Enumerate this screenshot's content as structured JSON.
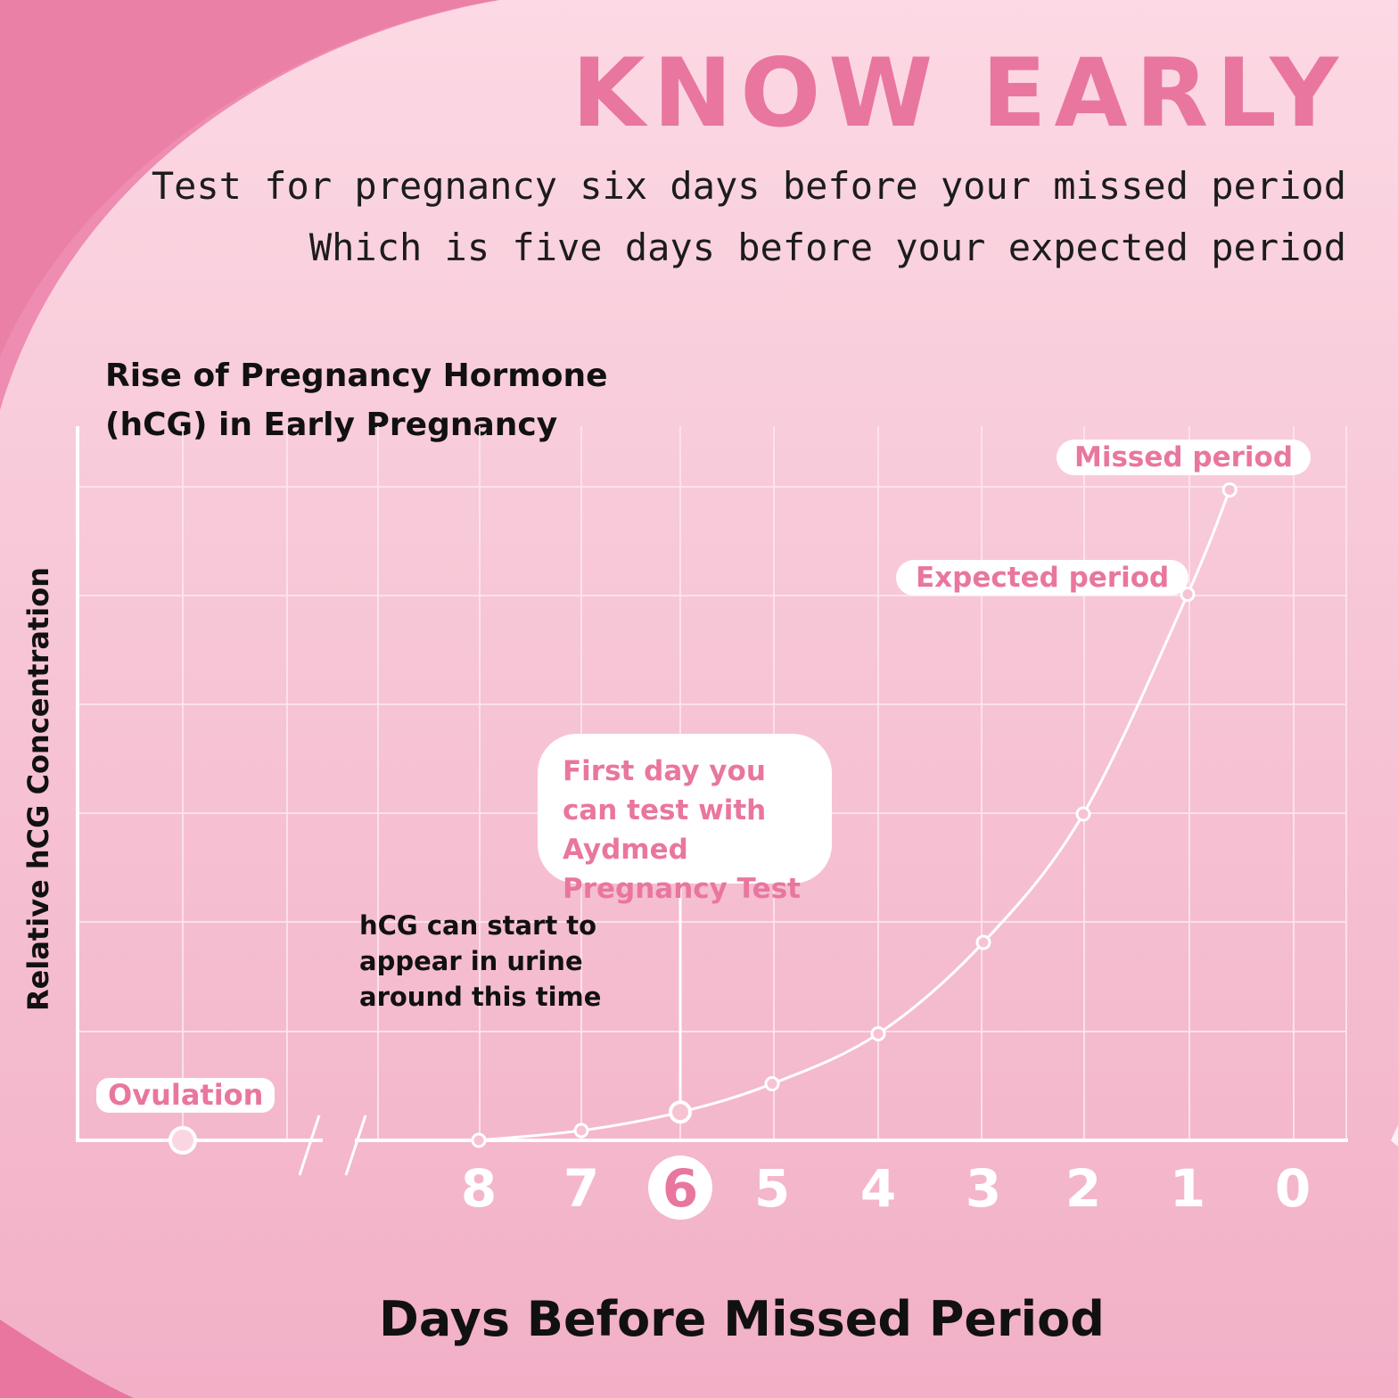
{
  "header": {
    "title": "KNOW EARLY",
    "line1": "Test for pregnancy six days before your missed period",
    "line2": "Which is five days before your expected period"
  },
  "colors": {
    "accent": "#e9769f",
    "text": "#111111",
    "grid": "#fde7ef",
    "marker_fill": "#f7c3d3"
  },
  "annotations": {
    "missed_period": "Missed period",
    "expected_period": "Expected period",
    "ovulation": "Ovulation",
    "first_day": "First day you can test with Aydmed Pregnancy Test",
    "hcg_note": "hCG can start to appear in urine around this time"
  },
  "chart_data": {
    "type": "line",
    "title": "Rise of Pregnancy Hormone (hCG) in Early Pregnancy",
    "xlabel": "Days Before Missed Period",
    "ylabel": "Relative hCG Concentration",
    "x_ticks": [
      "8",
      "7",
      "6",
      "5",
      "4",
      "3",
      "2",
      "1",
      "0"
    ],
    "highlighted_tick": "6",
    "x_axis_break": true,
    "grid": true,
    "ylim": [
      0,
      6
    ],
    "series": [
      {
        "x": [
          8,
          7,
          6,
          5,
          4,
          3,
          2,
          1,
          0.6
        ],
        "y": [
          0,
          0.09,
          0.26,
          0.52,
          0.98,
          1.82,
          3.0,
          5.02,
          5.98
        ]
      }
    ],
    "ovulation_point": 0
  }
}
